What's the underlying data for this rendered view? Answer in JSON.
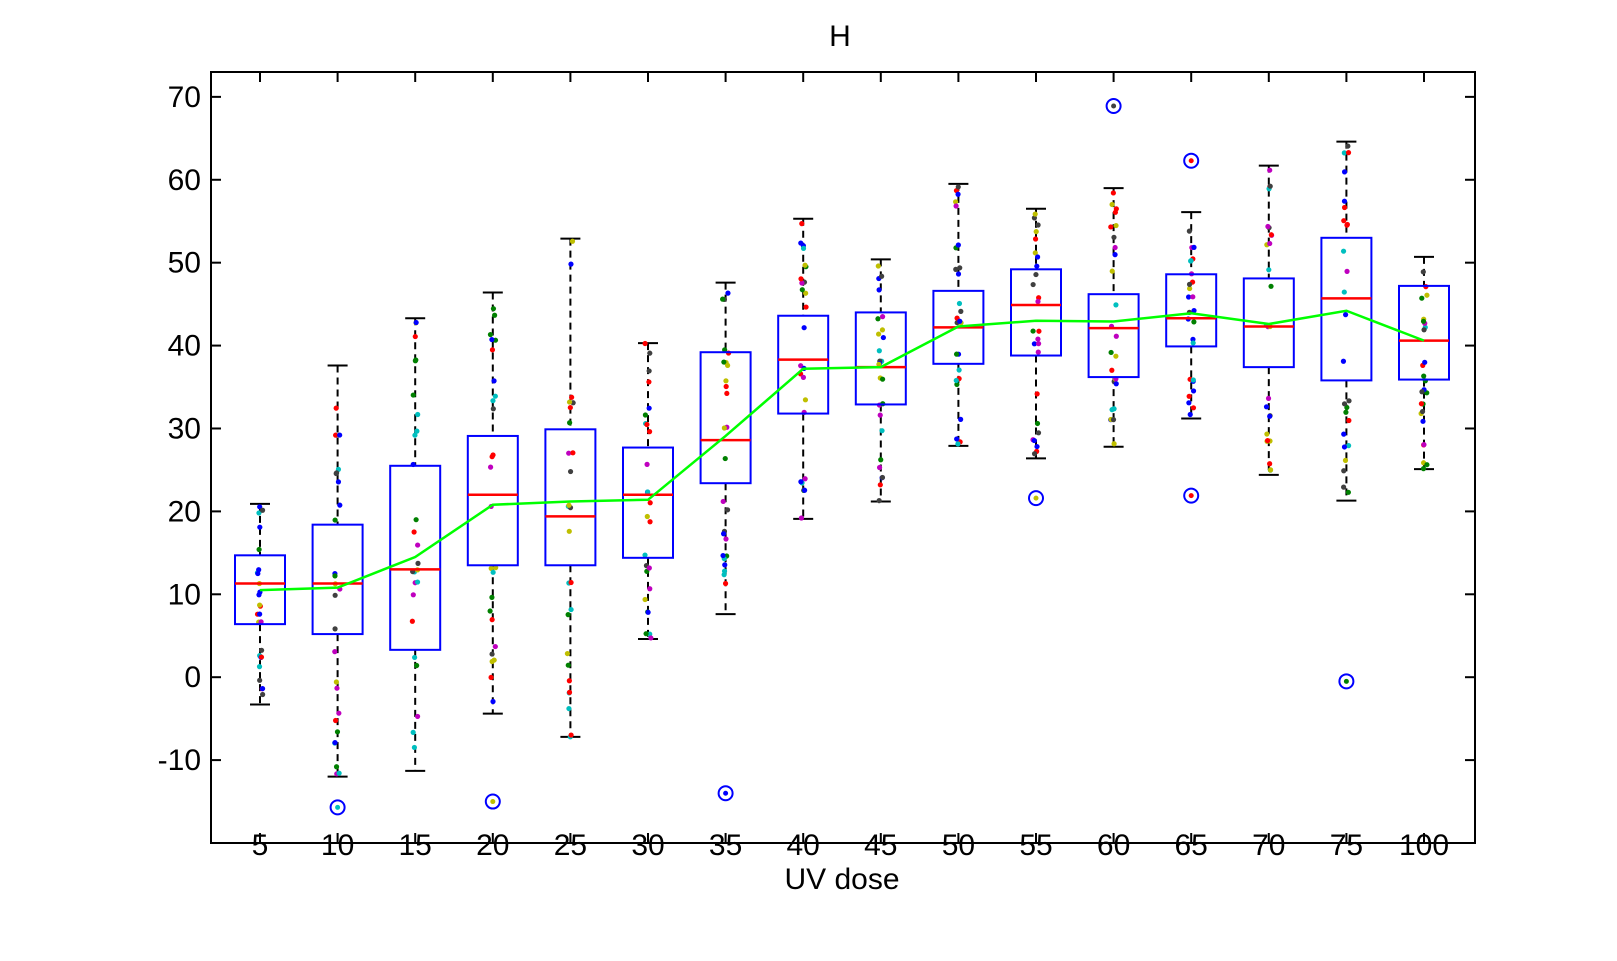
{
  "chart_data": {
    "type": "box",
    "title": "H",
    "xlabel": "UV dose",
    "ylabel": "",
    "ylim": [
      -20,
      73
    ],
    "yticks": [
      -10,
      0,
      10,
      20,
      30,
      40,
      50,
      60,
      70
    ],
    "grid": false,
    "categories": [
      "5",
      "10",
      "15",
      "20",
      "25",
      "30",
      "35",
      "40",
      "45",
      "50",
      "55",
      "60",
      "65",
      "70",
      "75",
      "100"
    ],
    "boxes": [
      {
        "min": -3.3,
        "q1": 6.4,
        "median": 11.3,
        "q3": 14.7,
        "max": 20.9,
        "outliers": []
      },
      {
        "min": -12.0,
        "q1": 5.2,
        "median": 11.3,
        "q3": 18.4,
        "max": 37.6,
        "outliers": [
          -15.7
        ]
      },
      {
        "min": -11.3,
        "q1": 3.3,
        "median": 13.0,
        "q3": 25.5,
        "max": 43.3,
        "outliers": []
      },
      {
        "min": -4.4,
        "q1": 13.5,
        "median": 22.0,
        "q3": 29.1,
        "max": 46.4,
        "outliers": [
          -15.0
        ]
      },
      {
        "min": -7.2,
        "q1": 13.5,
        "median": 19.4,
        "q3": 29.9,
        "max": 52.9,
        "outliers": []
      },
      {
        "min": 4.6,
        "q1": 14.4,
        "median": 22.0,
        "q3": 27.7,
        "max": 40.3,
        "outliers": []
      },
      {
        "min": 7.6,
        "q1": 23.4,
        "median": 28.6,
        "q3": 39.2,
        "max": 47.6,
        "outliers": [
          -14.0
        ]
      },
      {
        "min": 19.1,
        "q1": 31.8,
        "median": 38.3,
        "q3": 43.6,
        "max": 55.3,
        "outliers": []
      },
      {
        "min": 21.2,
        "q1": 32.9,
        "median": 37.4,
        "q3": 44.0,
        "max": 50.4,
        "outliers": []
      },
      {
        "min": 27.9,
        "q1": 37.8,
        "median": 42.2,
        "q3": 46.6,
        "max": 59.5,
        "outliers": []
      },
      {
        "min": 26.4,
        "q1": 38.8,
        "median": 44.9,
        "q3": 49.2,
        "max": 56.5,
        "outliers": [
          21.6
        ]
      },
      {
        "min": 27.8,
        "q1": 36.2,
        "median": 42.1,
        "q3": 46.2,
        "max": 59.0,
        "outliers": [
          68.9
        ]
      },
      {
        "min": 31.2,
        "q1": 39.9,
        "median": 43.3,
        "q3": 48.6,
        "max": 56.1,
        "outliers": [
          62.3,
          21.9
        ]
      },
      {
        "min": 24.4,
        "q1": 37.4,
        "median": 42.3,
        "q3": 48.1,
        "max": 61.7,
        "outliers": []
      },
      {
        "min": 21.3,
        "q1": 35.8,
        "median": 45.7,
        "q3": 53.0,
        "max": 64.6,
        "outliers": [
          -0.5
        ]
      },
      {
        "min": 25.1,
        "q1": 35.9,
        "median": 40.6,
        "q3": 47.2,
        "max": 50.7,
        "outliers": []
      }
    ],
    "mean_line": {
      "color": "#00ff00",
      "values": [
        10.5,
        10.8,
        14.5,
        20.8,
        21.2,
        21.4,
        29.1,
        37.2,
        37.4,
        42.3,
        43.0,
        42.9,
        43.9,
        42.6,
        44.2,
        40.6
      ]
    },
    "colors": {
      "box": "#0000ff",
      "median": "#ff0000",
      "whisker": "#000000",
      "points": [
        "#ff0000",
        "#0000ff",
        "#008000",
        "#00bfbf",
        "#bf00bf",
        "#bfbf00",
        "#404040"
      ]
    }
  }
}
